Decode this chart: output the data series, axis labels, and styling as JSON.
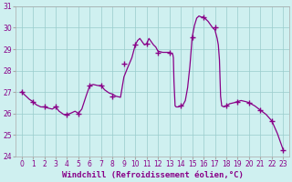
{
  "line_color": "#880088",
  "marker": "+",
  "marker_size": 4,
  "background_color": "#cff0f0",
  "grid_color": "#99cccc",
  "xlabel": "Windchill (Refroidissement éolien,°C)",
  "ylim": [
    24,
    31
  ],
  "yticks": [
    24,
    25,
    26,
    27,
    28,
    29,
    30,
    31
  ],
  "xticks": [
    0,
    1,
    2,
    3,
    4,
    5,
    6,
    7,
    8,
    9,
    10,
    11,
    12,
    13,
    14,
    15,
    16,
    17,
    18,
    19,
    20,
    21,
    22,
    23
  ],
  "tick_fontsize": 5.5,
  "xlabel_fontsize": 6.5,
  "x_fine": [
    0,
    0.3,
    0.7,
    1,
    1.3,
    1.7,
    2,
    2.3,
    2.7,
    3,
    3.3,
    3.7,
    4,
    4.3,
    4.7,
    5,
    5.3,
    5.7,
    6,
    6.3,
    6.7,
    7,
    7.3,
    7.7,
    8,
    8.3,
    8.7,
    9,
    9.3,
    9.7,
    10,
    10.2,
    10.4,
    10.6,
    10.8,
    11,
    11.2,
    11.4,
    11.6,
    11.8,
    12,
    12.2,
    12.4,
    12.6,
    12.8,
    13,
    13.1,
    13.2,
    13.3,
    13.35,
    13.4,
    13.5,
    13.6,
    13.8,
    14,
    14.2,
    14.4,
    14.6,
    14.8,
    15,
    15.2,
    15.4,
    15.6,
    15.8,
    16,
    16.2,
    16.4,
    16.6,
    16.8,
    17,
    17.1,
    17.2,
    17.3,
    17.4,
    17.5,
    17.6,
    17.8,
    18,
    18.3,
    18.7,
    19,
    19.3,
    19.7,
    20,
    20.5,
    21,
    21.5,
    22,
    22.5,
    23
  ],
  "y_fine": [
    27.0,
    26.85,
    26.65,
    26.55,
    26.4,
    26.3,
    26.3,
    26.25,
    26.2,
    26.3,
    26.1,
    25.95,
    25.95,
    26.0,
    26.1,
    26.0,
    26.2,
    26.85,
    27.3,
    27.35,
    27.3,
    27.3,
    27.1,
    26.95,
    26.9,
    26.8,
    26.75,
    27.7,
    28.1,
    28.6,
    29.2,
    29.4,
    29.5,
    29.35,
    29.2,
    29.25,
    29.5,
    29.35,
    29.2,
    29.1,
    28.9,
    28.88,
    28.85,
    28.85,
    28.85,
    28.85,
    28.82,
    28.8,
    28.75,
    28.6,
    27.5,
    26.35,
    26.3,
    26.3,
    26.35,
    26.4,
    26.6,
    27.2,
    28.2,
    29.55,
    30.1,
    30.45,
    30.55,
    30.5,
    30.5,
    30.4,
    30.3,
    30.15,
    30.0,
    29.9,
    29.7,
    29.5,
    29.2,
    28.5,
    26.8,
    26.35,
    26.3,
    26.35,
    26.45,
    26.5,
    26.55,
    26.6,
    26.55,
    26.5,
    26.35,
    26.15,
    25.95,
    25.65,
    25.05,
    24.3
  ],
  "hours": [
    0,
    1,
    2,
    3,
    4,
    5,
    6,
    7,
    8,
    9,
    10,
    11,
    12,
    13,
    14,
    15,
    16,
    17,
    18,
    19,
    20,
    21,
    22,
    23
  ],
  "hour_vals": [
    27.0,
    26.55,
    26.3,
    26.3,
    25.95,
    26.0,
    27.3,
    27.3,
    26.8,
    28.3,
    29.2,
    29.25,
    28.85,
    28.85,
    26.35,
    29.55,
    30.5,
    30.0,
    26.35,
    26.55,
    26.5,
    26.15,
    25.65,
    24.3
  ]
}
